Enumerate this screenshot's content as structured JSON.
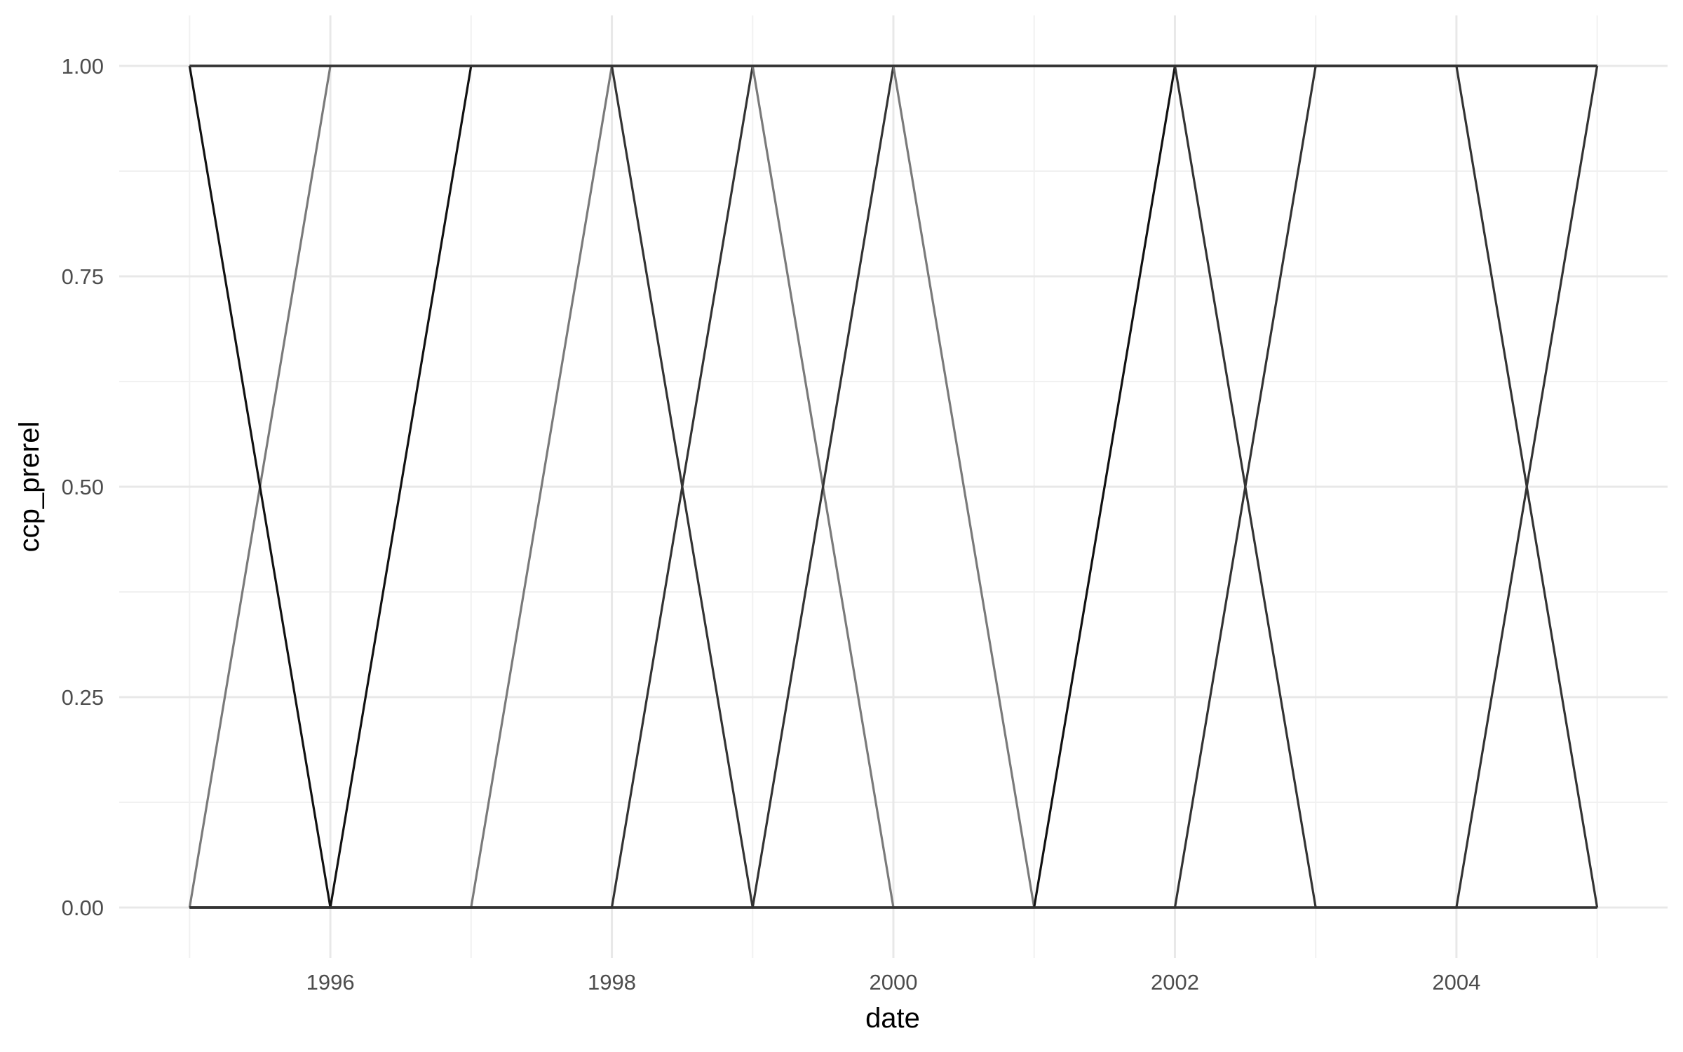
{
  "chart_data": {
    "type": "line",
    "title": "",
    "xlabel": "date",
    "ylabel": "ccp_prerel",
    "xlim": [
      1994.5,
      2005.5
    ],
    "ylim": [
      -0.06,
      1.06
    ],
    "x_ticks": [
      1996,
      1998,
      2000,
      2002,
      2004
    ],
    "y_ticks": [
      0,
      0.25,
      0.5,
      0.75,
      1
    ],
    "x_tick_labels": [
      "1996",
      "1998",
      "2000",
      "2002",
      "2004"
    ],
    "y_tick_labels": [
      "0.00",
      "0.25",
      "0.50",
      "0.75",
      "1.00"
    ],
    "grid": true,
    "legend": "none",
    "series": [
      {
        "color": "#7a7a7a",
        "x": [
          1995,
          1996,
          2005
        ],
        "y": [
          0,
          1,
          1
        ]
      },
      {
        "color": "#111111",
        "x": [
          1995,
          1996,
          1997,
          2005
        ],
        "y": [
          1,
          0,
          1,
          1
        ]
      },
      {
        "color": "#7a7a7a",
        "x": [
          1995,
          1997,
          1998,
          2005
        ],
        "y": [
          0,
          0,
          1,
          1
        ]
      },
      {
        "color": "#333333",
        "x": [
          1995,
          1998,
          1999,
          2005
        ],
        "y": [
          1,
          1,
          0,
          0
        ]
      },
      {
        "color": "#333333",
        "x": [
          1995,
          1998,
          1999,
          2005
        ],
        "y": [
          0,
          0,
          1,
          1
        ]
      },
      {
        "color": "#7a7a7a",
        "x": [
          1995,
          1999,
          2000,
          2005
        ],
        "y": [
          1,
          1,
          0,
          0
        ]
      },
      {
        "color": "#333333",
        "x": [
          1995,
          1999,
          2000,
          2005
        ],
        "y": [
          0,
          0,
          1,
          1
        ]
      },
      {
        "color": "#7a7a7a",
        "x": [
          1995,
          2000,
          2001,
          2005
        ],
        "y": [
          1,
          1,
          0,
          0
        ]
      },
      {
        "color": "#111111",
        "x": [
          1995,
          2001,
          2002,
          2005
        ],
        "y": [
          0,
          0,
          1,
          1
        ]
      },
      {
        "color": "#333333",
        "x": [
          1995,
          2002,
          2003,
          2005
        ],
        "y": [
          1,
          1,
          0,
          0
        ]
      },
      {
        "color": "#333333",
        "x": [
          1995,
          2002,
          2003,
          2005
        ],
        "y": [
          0,
          0,
          1,
          1
        ]
      },
      {
        "color": "#333333",
        "x": [
          1995,
          2004,
          2005
        ],
        "y": [
          1,
          1,
          0
        ]
      },
      {
        "color": "#333333",
        "x": [
          1995,
          2004,
          2005
        ],
        "y": [
          0,
          0,
          1
        ]
      }
    ]
  }
}
